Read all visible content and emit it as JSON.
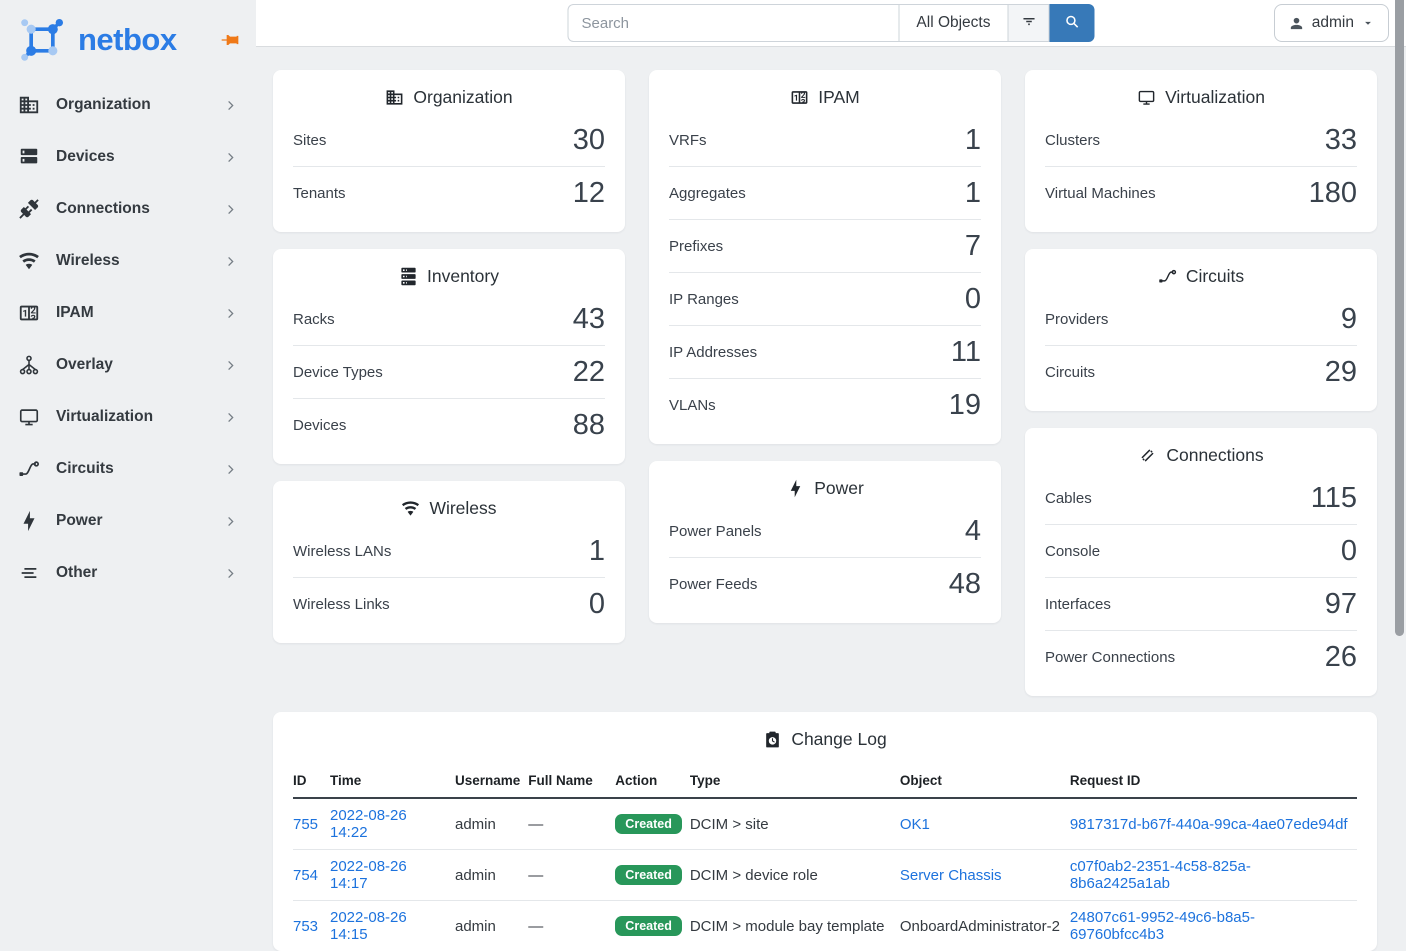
{
  "brand": {
    "name": "netbox"
  },
  "topbar": {
    "search_placeholder": "Search",
    "scope_button_label": "All Objects"
  },
  "user_menu": {
    "label": "admin"
  },
  "sidebar": {
    "items": [
      {
        "label": "Organization",
        "icon": "building-icon"
      },
      {
        "label": "Devices",
        "icon": "server-icon"
      },
      {
        "label": "Connections",
        "icon": "plug-icon"
      },
      {
        "label": "Wireless",
        "icon": "wifi-icon"
      },
      {
        "label": "IPAM",
        "icon": "counter-icon"
      },
      {
        "label": "Overlay",
        "icon": "overlay-icon"
      },
      {
        "label": "Virtualization",
        "icon": "monitor-icon"
      },
      {
        "label": "Circuits",
        "icon": "transit-icon"
      },
      {
        "label": "Power",
        "icon": "bolt-icon"
      },
      {
        "label": "Other",
        "icon": "list-icon"
      }
    ]
  },
  "cards": [
    {
      "title": "Organization",
      "icon": "building-icon",
      "column": 0,
      "stats": [
        {
          "label": "Sites",
          "value": "30"
        },
        {
          "label": "Tenants",
          "value": "12"
        }
      ]
    },
    {
      "title": "Inventory",
      "icon": "rack-icon",
      "column": 0,
      "stats": [
        {
          "label": "Racks",
          "value": "43"
        },
        {
          "label": "Device Types",
          "value": "22"
        },
        {
          "label": "Devices",
          "value": "88"
        }
      ]
    },
    {
      "title": "Wireless",
      "icon": "wifi-icon",
      "column": 0,
      "stats": [
        {
          "label": "Wireless LANs",
          "value": "1"
        },
        {
          "label": "Wireless Links",
          "value": "0"
        }
      ]
    },
    {
      "title": "IPAM",
      "icon": "counter-icon",
      "column": 1,
      "stats": [
        {
          "label": "VRFs",
          "value": "1"
        },
        {
          "label": "Aggregates",
          "value": "1"
        },
        {
          "label": "Prefixes",
          "value": "7"
        },
        {
          "label": "IP Ranges",
          "value": "0"
        },
        {
          "label": "IP Addresses",
          "value": "11"
        },
        {
          "label": "VLANs",
          "value": "19"
        }
      ]
    },
    {
      "title": "Power",
      "icon": "bolt-icon",
      "column": 1,
      "stats": [
        {
          "label": "Power Panels",
          "value": "4"
        },
        {
          "label": "Power Feeds",
          "value": "48"
        }
      ]
    },
    {
      "title": "Virtualization",
      "icon": "monitor-icon",
      "column": 2,
      "stats": [
        {
          "label": "Clusters",
          "value": "33"
        },
        {
          "label": "Virtual Machines",
          "value": "180"
        }
      ]
    },
    {
      "title": "Circuits",
      "icon": "transit-icon",
      "column": 2,
      "stats": [
        {
          "label": "Providers",
          "value": "9"
        },
        {
          "label": "Circuits",
          "value": "29"
        }
      ]
    },
    {
      "title": "Connections",
      "icon": "cables-icon",
      "column": 2,
      "stats": [
        {
          "label": "Cables",
          "value": "115"
        },
        {
          "label": "Console",
          "value": "0"
        },
        {
          "label": "Interfaces",
          "value": "97"
        },
        {
          "label": "Power Connections",
          "value": "26"
        }
      ]
    }
  ],
  "changelog": {
    "title": "Change Log",
    "icon": "clipboard-clock-icon",
    "columns": [
      "ID",
      "Time",
      "Username",
      "Full Name",
      "Action",
      "Type",
      "Object",
      "Request ID"
    ],
    "rows": [
      {
        "id": "755",
        "time": "2022-08-26 14:22",
        "username": "admin",
        "full_name": "—",
        "action": "Created",
        "type": "DCIM > site",
        "object": "OK1",
        "object_is_link": true,
        "request_id": "9817317d-b67f-440a-99ca-4ae07ede94df"
      },
      {
        "id": "754",
        "time": "2022-08-26 14:17",
        "username": "admin",
        "full_name": "—",
        "action": "Created",
        "type": "DCIM > device role",
        "object": "Server Chassis",
        "object_is_link": true,
        "request_id": "c07f0ab2-2351-4c58-825a-8b6a2425a1ab"
      },
      {
        "id": "753",
        "time": "2022-08-26 14:15",
        "username": "admin",
        "full_name": "—",
        "action": "Created",
        "type": "DCIM > module bay template",
        "object": "OnboardAdministrator-2",
        "object_is_link": false,
        "request_id": "24807c61-9952-49c6-b8a5-69760bfcc4b3"
      }
    ]
  },
  "colors": {
    "logo_blue": "#2b7ce5",
    "search_button_blue": "#3779b8",
    "link_blue": "#1c72dd",
    "badge_green": "#28975a",
    "pin_orange": "#ef7918",
    "background_gray": "#eef0f2"
  }
}
